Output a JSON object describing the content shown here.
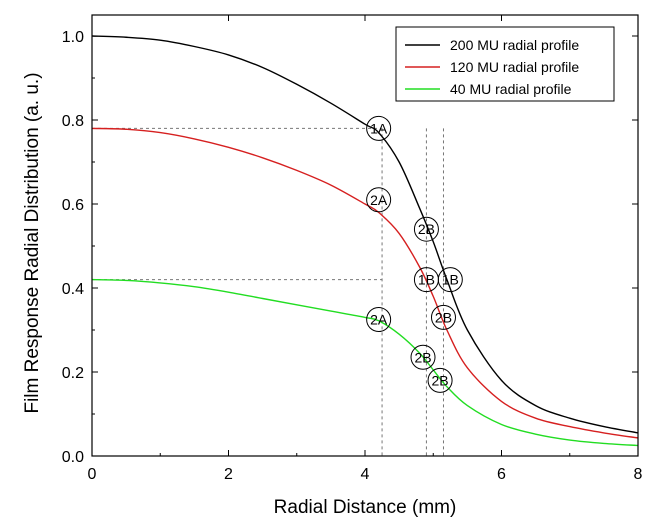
{
  "chart_data": {
    "type": "line",
    "xlabel": "Radial Distance (mm)",
    "ylabel": "Film Response Radial Distribution (a. u.)",
    "xlim": [
      0,
      8
    ],
    "ylim": [
      0,
      1.05
    ],
    "xticks": [
      "0",
      "2",
      "4",
      "6",
      "8"
    ],
    "yticks": [
      "0.0",
      "0.2",
      "0.4",
      "0.6",
      "0.8",
      "1.0"
    ],
    "xtick_values": [
      0,
      2,
      4,
      6,
      8
    ],
    "ytick_values": [
      0,
      0.2,
      0.4,
      0.6,
      0.8,
      1.0
    ],
    "grid": false,
    "legend_position": "top-right",
    "series": [
      {
        "name": "200 MU radial profile",
        "color": "#000000",
        "x": [
          0,
          0.5,
          1,
          1.5,
          2,
          2.5,
          3,
          3.5,
          4,
          4.2,
          4.5,
          4.8,
          5.0,
          5.2,
          5.5,
          6,
          6.5,
          7,
          7.5,
          8
        ],
        "y": [
          1.0,
          0.997,
          0.99,
          0.975,
          0.955,
          0.925,
          0.885,
          0.84,
          0.79,
          0.77,
          0.7,
          0.59,
          0.51,
          0.42,
          0.3,
          0.18,
          0.12,
          0.09,
          0.07,
          0.055
        ]
      },
      {
        "name": "120 MU radial profile",
        "color": "#d62020",
        "x": [
          0,
          0.5,
          1,
          1.5,
          2,
          2.5,
          3,
          3.5,
          4,
          4.2,
          4.5,
          4.8,
          5.0,
          5.2,
          5.5,
          6,
          6.5,
          7,
          7.5,
          8
        ],
        "y": [
          0.78,
          0.778,
          0.77,
          0.755,
          0.735,
          0.71,
          0.68,
          0.645,
          0.6,
          0.58,
          0.53,
          0.45,
          0.38,
          0.3,
          0.21,
          0.13,
          0.09,
          0.07,
          0.055,
          0.043
        ]
      },
      {
        "name": "40 MU radial profile",
        "color": "#22dd22",
        "x": [
          0,
          0.5,
          1,
          1.5,
          2,
          2.5,
          3,
          3.5,
          4,
          4.2,
          4.5,
          4.8,
          5.0,
          5.2,
          5.5,
          6,
          6.5,
          7,
          7.5,
          8
        ],
        "y": [
          0.42,
          0.418,
          0.412,
          0.403,
          0.39,
          0.375,
          0.36,
          0.345,
          0.33,
          0.322,
          0.29,
          0.245,
          0.205,
          0.165,
          0.12,
          0.075,
          0.052,
          0.038,
          0.03,
          0.025
        ]
      }
    ],
    "annotations": [
      {
        "label": "1A",
        "x": 4.2,
        "y": 0.78
      },
      {
        "label": "2A",
        "x": 4.2,
        "y": 0.61
      },
      {
        "label": "2B",
        "x": 4.9,
        "y": 0.54
      },
      {
        "label": "1B",
        "x": 4.9,
        "y": 0.42
      },
      {
        "label": "1B",
        "x": 5.25,
        "y": 0.42
      },
      {
        "label": "2B",
        "x": 5.15,
        "y": 0.33
      },
      {
        "label": "2A",
        "x": 4.2,
        "y": 0.325
      },
      {
        "label": "2B",
        "x": 4.85,
        "y": 0.235
      },
      {
        "label": "2B",
        "x": 5.1,
        "y": 0.18
      }
    ],
    "reference_lines": {
      "horizontal": [
        0.78,
        0.42
      ],
      "vertical": [
        4.25,
        4.9,
        5.15
      ]
    }
  }
}
